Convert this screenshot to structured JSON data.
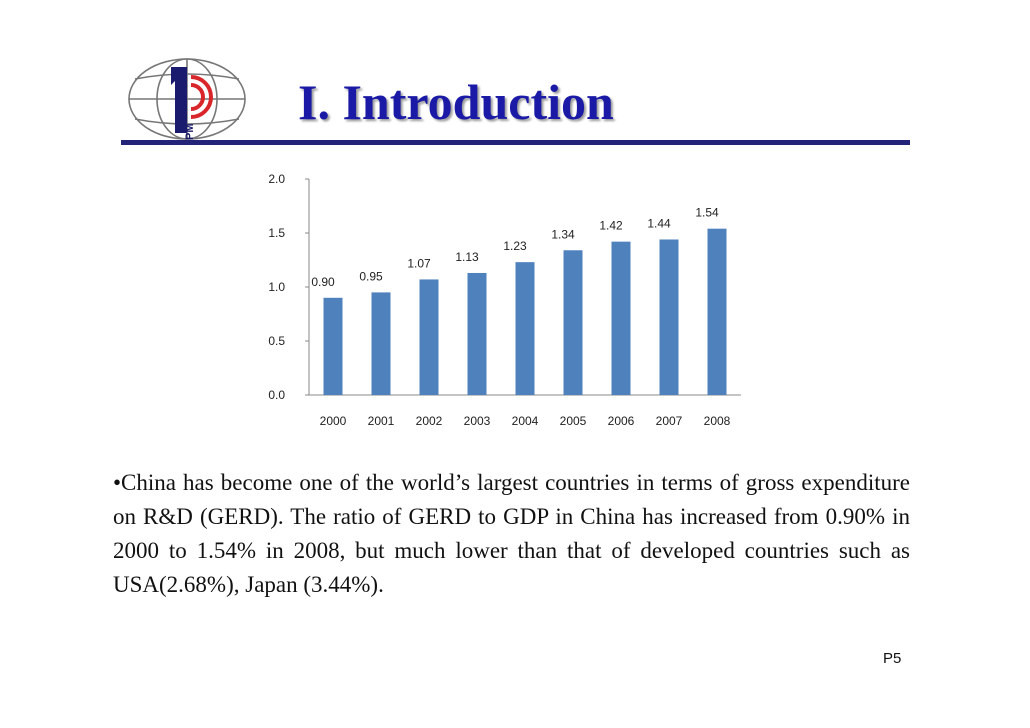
{
  "slide": {
    "title": "I. Introduction",
    "body": "•China has become one of the world’s largest countries in terms of gross expenditure on R&D (GERD). The ratio of GERD to GDP in China has increased from 0.90% in 2000 to 1.54% in 2008, but much lower than that of developed countries such as USA(2.68%), Japan (3.44%).",
    "page_number": "P5",
    "logo_text": "IPM",
    "colors": {
      "title": "#1a1aa6",
      "rule": "#23237a",
      "bar": "#4f81bd",
      "logo_red": "#d8262b"
    }
  },
  "chart_data": {
    "type": "bar",
    "categories": [
      "2000",
      "2001",
      "2002",
      "2003",
      "2004",
      "2005",
      "2006",
      "2007",
      "2008"
    ],
    "values": [
      0.9,
      0.95,
      1.07,
      1.13,
      1.23,
      1.34,
      1.42,
      1.44,
      1.54
    ],
    "value_labels": [
      "0.90",
      "0.95",
      "1.07",
      "1.13",
      "1.23",
      "1.34",
      "1.42",
      "1.44",
      "1.54"
    ],
    "y_ticks": [
      "0.0",
      "0.5",
      "1.0",
      "1.5",
      "2.0"
    ],
    "ylim": [
      0,
      2.0
    ],
    "grid": false,
    "legend": "none"
  }
}
